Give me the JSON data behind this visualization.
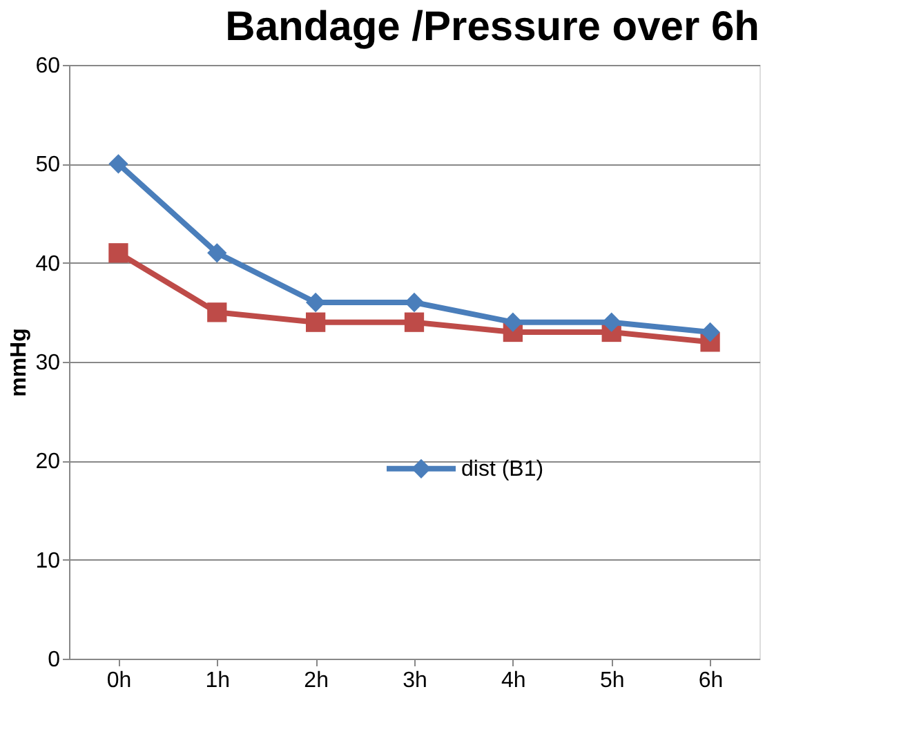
{
  "chart_data": {
    "type": "line",
    "title": "Bandage /Pressure over 6h",
    "ylabel": "mmHg",
    "categories": [
      "0h",
      "1h",
      "2h",
      "3h",
      "4h",
      "5h",
      "6h"
    ],
    "series": [
      {
        "name": "dist (B1)",
        "color": "#4a7ebb",
        "marker": "diamond",
        "values": [
          50,
          41,
          36,
          36,
          34,
          34,
          33
        ]
      },
      {
        "color": "#be4b48",
        "marker": "square",
        "values": [
          41,
          35,
          34,
          34,
          33,
          33,
          32
        ]
      }
    ],
    "ylim": [
      0,
      60
    ],
    "yticks": [
      0,
      10,
      20,
      30,
      40,
      50,
      60
    ],
    "grid": "y",
    "legend": "center",
    "line_style": "solid"
  }
}
